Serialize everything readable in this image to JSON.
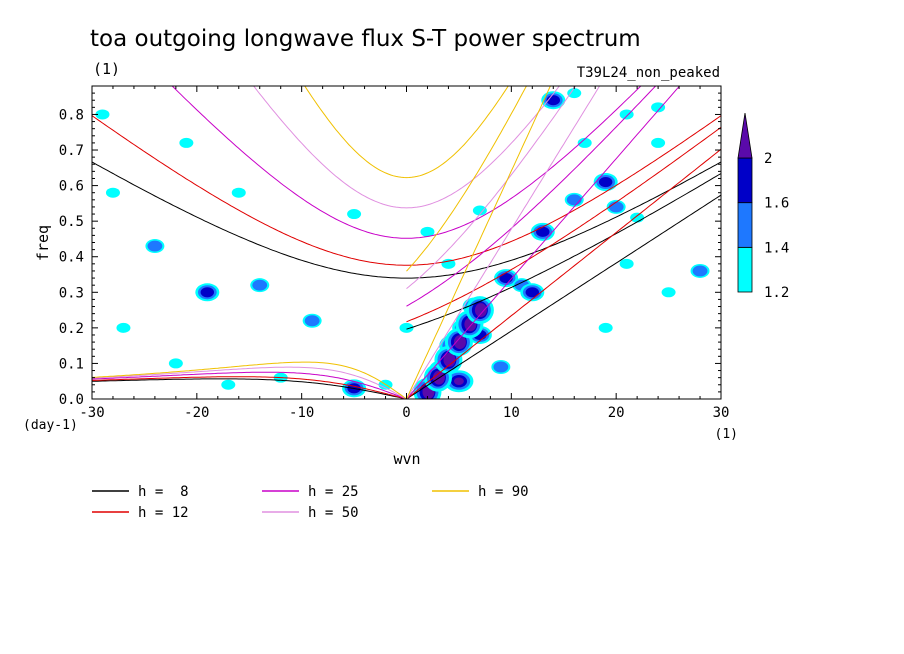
{
  "chart_data": {
    "type": "heatmap",
    "title": "toa outgoing longwave flux S-T power spectrum",
    "subtitle_left": "(1)",
    "subtitle_right": "T39L24_non_peaked",
    "xlabel": "wvn",
    "ylabel": "freq",
    "x_unit": "(1)",
    "y_unit": "(day-1)",
    "xlim": [
      -30,
      30
    ],
    "ylim": [
      0,
      0.88
    ],
    "x_ticks": [
      -30,
      -20,
      -10,
      0,
      10,
      20,
      30
    ],
    "x_tick_labels": [
      "-30",
      "-20",
      "-10",
      "0",
      "10",
      "20",
      "30"
    ],
    "y_ticks": [
      0,
      0.1,
      0.2,
      0.3,
      0.4,
      0.5,
      0.6,
      0.7,
      0.8
    ],
    "y_tick_labels": [
      "0.0",
      "0.1",
      "0.2",
      "0.3",
      "0.4",
      "0.5",
      "0.6",
      "0.7",
      "0.8"
    ],
    "colorbar": {
      "levels": [
        1.2,
        1.4,
        1.6,
        2
      ],
      "labels": [
        "1.2",
        "1.4",
        "1.6",
        "2"
      ],
      "colors": [
        "#00ffff",
        "#1e78ff",
        "#0000c8",
        "#5a0aaa"
      ]
    },
    "dispersion_curves": [
      {
        "name": "h =  8",
        "h": 8,
        "color": "#000000"
      },
      {
        "name": "h = 12",
        "h": 12,
        "color": "#e00000"
      },
      {
        "name": "h = 25",
        "h": 25,
        "color": "#c800c8"
      },
      {
        "name": "h = 50",
        "h": 50,
        "color": "#e090e0"
      },
      {
        "name": "h = 90",
        "h": 90,
        "color": "#f0c000"
      }
    ],
    "power_blobs": [
      {
        "x": 4.5,
        "y": 0.15,
        "level": 2
      },
      {
        "x": 3.5,
        "y": 0.08,
        "level": 2
      },
      {
        "x": 5.5,
        "y": 0.2,
        "level": 1.6
      },
      {
        "x": 6.5,
        "y": 0.26,
        "level": 1.6
      },
      {
        "x": 9.5,
        "y": 0.34,
        "level": 1.6
      },
      {
        "x": 11,
        "y": 0.32,
        "level": 1.4
      },
      {
        "x": 12,
        "y": 0.3,
        "level": 1.6
      },
      {
        "x": 13,
        "y": 0.47,
        "level": 1.6
      },
      {
        "x": 16,
        "y": 0.56,
        "level": 1.4
      },
      {
        "x": 19,
        "y": 0.61,
        "level": 1.6
      },
      {
        "x": 20,
        "y": 0.54,
        "level": 1.4
      },
      {
        "x": 22,
        "y": 0.51,
        "level": 1.2
      },
      {
        "x": 17,
        "y": 0.72,
        "level": 1.2
      },
      {
        "x": 21,
        "y": 0.8,
        "level": 1.2
      },
      {
        "x": 24,
        "y": 0.82,
        "level": 1.2
      },
      {
        "x": 16,
        "y": 0.86,
        "level": 1.2
      },
      {
        "x": 14,
        "y": 0.84,
        "level": 1.6
      },
      {
        "x": 7,
        "y": 0.53,
        "level": 1.2
      },
      {
        "x": 4,
        "y": 0.38,
        "level": 1.2
      },
      {
        "x": 2,
        "y": 0.47,
        "level": 1.2
      },
      {
        "x": -19,
        "y": 0.3,
        "level": 1.6
      },
      {
        "x": -14,
        "y": 0.32,
        "level": 1.4
      },
      {
        "x": -24,
        "y": 0.43,
        "level": 1.4
      },
      {
        "x": -9,
        "y": 0.22,
        "level": 1.4
      },
      {
        "x": -27,
        "y": 0.2,
        "level": 1.2
      },
      {
        "x": -22,
        "y": 0.1,
        "level": 1.2
      },
      {
        "x": -5,
        "y": 0.03,
        "level": 1.6
      },
      {
        "x": -2,
        "y": 0.04,
        "level": 1.2
      },
      {
        "x": -21,
        "y": 0.72,
        "level": 1.2
      },
      {
        "x": -28,
        "y": 0.58,
        "level": 1.2
      },
      {
        "x": -16,
        "y": 0.58,
        "level": 1.2
      },
      {
        "x": -5,
        "y": 0.52,
        "level": 1.2
      },
      {
        "x": 0,
        "y": 0.2,
        "level": 1.2
      },
      {
        "x": -12,
        "y": 0.06,
        "level": 1.2
      },
      {
        "x": 24,
        "y": 0.72,
        "level": 1.2
      },
      {
        "x": 28,
        "y": 0.36,
        "level": 1.4
      },
      {
        "x": 21,
        "y": 0.38,
        "level": 1.2
      },
      {
        "x": 19,
        "y": 0.2,
        "level": 1.2
      },
      {
        "x": 25,
        "y": 0.3,
        "level": 1.2
      },
      {
        "x": -29,
        "y": 0.8,
        "level": 1.2
      },
      {
        "x": 9,
        "y": 0.09,
        "level": 1.4
      },
      {
        "x": -17,
        "y": 0.04,
        "level": 1.2
      },
      {
        "x": 7,
        "y": 0.18,
        "level": 1.6
      },
      {
        "x": 5,
        "y": 0.05,
        "level": 2
      }
    ]
  }
}
